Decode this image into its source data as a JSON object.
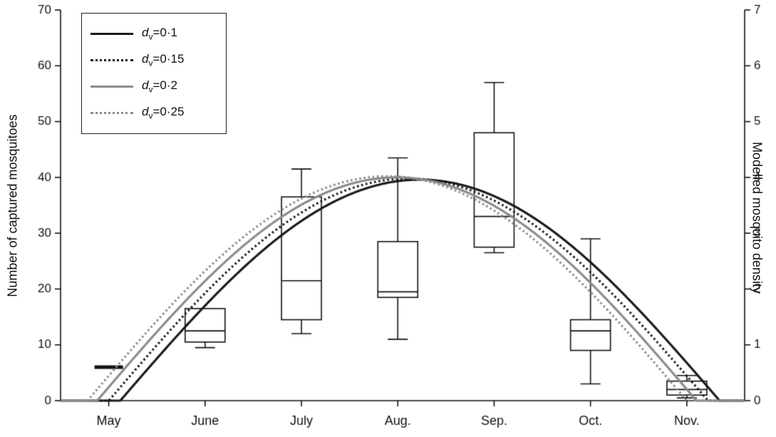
{
  "figure": {
    "background": "#ffffff"
  },
  "colors": {
    "black": "#1a1a1a",
    "gray": "#8c8c8c",
    "axis": "#111111"
  },
  "legend": {
    "items": [
      {
        "sym": "d",
        "sub": "v",
        "text": "=0·1",
        "color": "#1a1a1a",
        "dash": "solid"
      },
      {
        "sym": "d",
        "sub": "v",
        "text": "=0·15",
        "color": "#1a1a1a",
        "dash": "dotted"
      },
      {
        "sym": "d",
        "sub": "v",
        "text": "=0·2",
        "color": "#8c8c8c",
        "dash": "solid"
      },
      {
        "sym": "d",
        "sub": "v",
        "text": "=0·25",
        "color": "#8c8c8c",
        "dash": "dotted"
      }
    ]
  },
  "chart_data": {
    "type": "combo (boxplot + line)",
    "title": "",
    "x_axis": {
      "categories": [
        "May",
        "June",
        "July",
        "Aug.",
        "Sep.",
        "Oct.",
        "Nov."
      ],
      "tick_positions": [
        0,
        1,
        2,
        3,
        4,
        5,
        6
      ],
      "range": [
        -0.5,
        6.6
      ]
    },
    "y_left": {
      "label": "Number of captured mosquitoes",
      "range": [
        0,
        70
      ],
      "ticks": [
        0,
        10,
        20,
        30,
        40,
        50,
        60,
        70
      ]
    },
    "y_right": {
      "label": "Modelled mosquito density",
      "range": [
        0,
        7
      ],
      "ticks": [
        0,
        1,
        2,
        3,
        4,
        5,
        6,
        7
      ]
    },
    "boxplots_left_axis": [
      {
        "month": "May",
        "x": 0,
        "type": "dash",
        "value": 6
      },
      {
        "month": "June",
        "x": 1,
        "type": "box",
        "q1": 10.5,
        "median": 12.5,
        "q3": 16.5,
        "whisker_low": 9.5,
        "whisker_high": 16.5
      },
      {
        "month": "July",
        "x": 2,
        "type": "box",
        "q1": 14.5,
        "median": 21.5,
        "q3": 36.5,
        "whisker_low": 12,
        "whisker_high": 41.5
      },
      {
        "month": "Aug.",
        "x": 3,
        "type": "box",
        "q1": 18.5,
        "median": 19.5,
        "q3": 28.5,
        "whisker_low": 11,
        "whisker_high": 43.5
      },
      {
        "month": "Sep.",
        "x": 4,
        "type": "box",
        "q1": 27.5,
        "median": 33,
        "q3": 48,
        "whisker_low": 26.5,
        "whisker_high": 57
      },
      {
        "month": "Oct.",
        "x": 5,
        "type": "box",
        "q1": 9,
        "median": 12.5,
        "q3": 14.5,
        "whisker_low": 3,
        "whisker_high": 29
      },
      {
        "month": "Nov.",
        "x": 6,
        "type": "box",
        "q1": 1,
        "median": 2,
        "q3": 3.5,
        "whisker_low": 0.5,
        "whisker_high": 4.5
      }
    ],
    "curves_right_axis": [
      {
        "name": "dv=0.1",
        "color": "#1a1a1a",
        "dash": "solid",
        "start": 0.12,
        "end": 6.34,
        "peak": 3.96
      },
      {
        "name": "dv=0.15",
        "color": "#1a1a1a",
        "dash": "dotted",
        "start": 0.0,
        "end": 6.22,
        "peak": 3.98
      },
      {
        "name": "dv=0.2",
        "color": "#8c8c8c",
        "dash": "solid",
        "start": -0.12,
        "end": 6.1,
        "peak": 4.0
      },
      {
        "name": "dv=0.25",
        "color": "#8c8c8c",
        "dash": "dotted",
        "start": -0.22,
        "end": 6.0,
        "peak": 4.02
      }
    ],
    "curve_model": "density(m) = peak * sin(pi*(m-start)/(end-start)) for start<=m<=end, else 0; m in month units with May=0"
  }
}
